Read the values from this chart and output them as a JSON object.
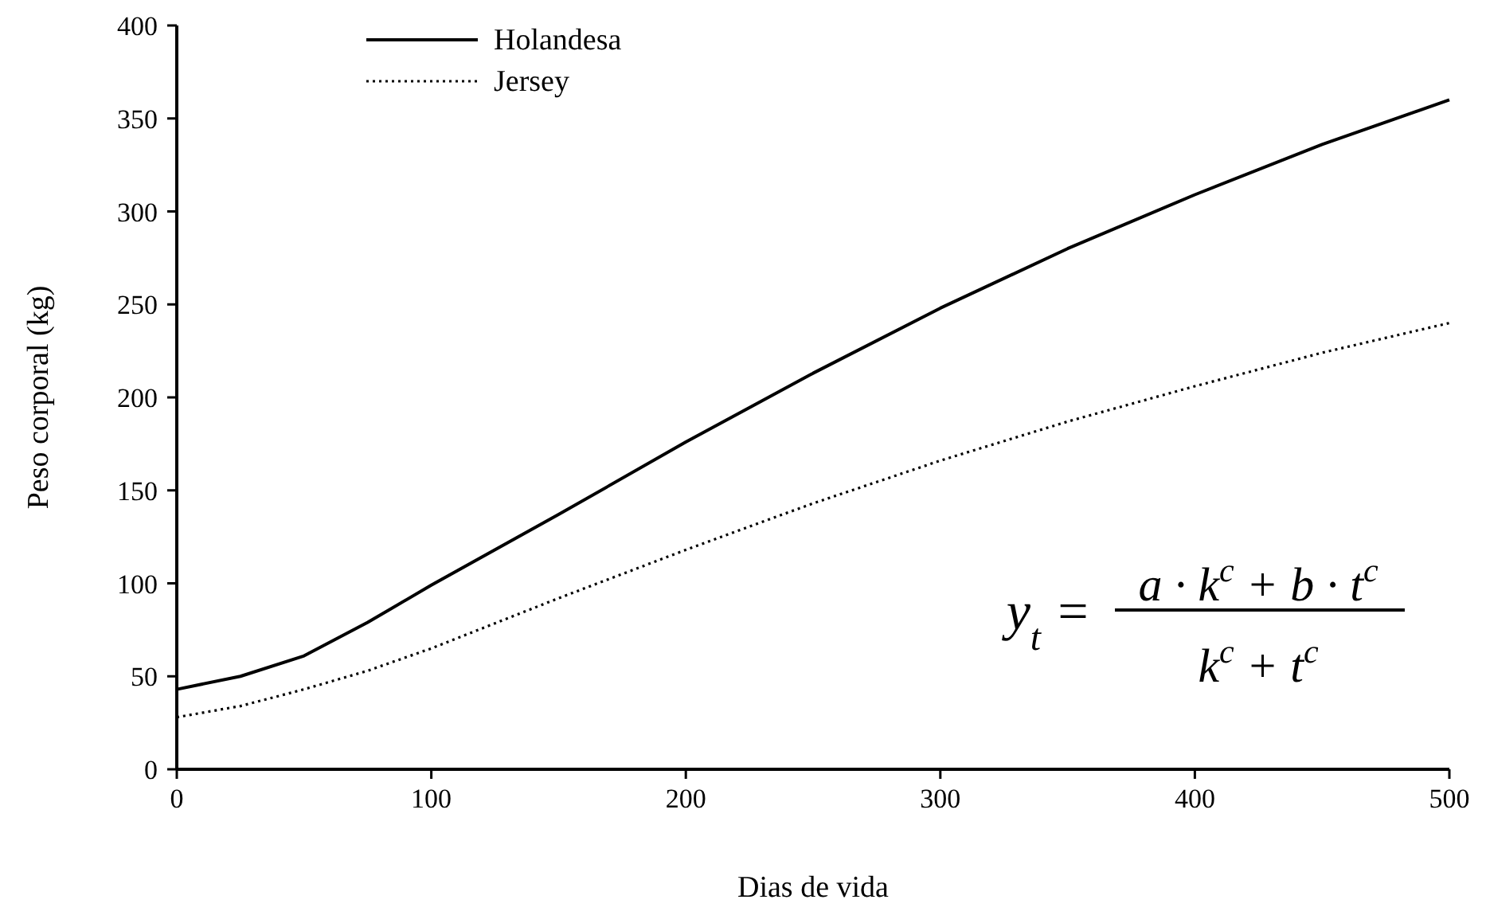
{
  "chart_data": {
    "type": "line",
    "xlabel": "Dias de vida",
    "ylabel": "Peso corporal (kg)",
    "x": [
      0,
      25,
      50,
      75,
      100,
      150,
      200,
      250,
      300,
      350,
      400,
      450,
      500
    ],
    "series": [
      {
        "name": "Holandesa",
        "color": "#000000",
        "line_style": "solid",
        "values": [
          43,
          50,
          61,
          79,
          99,
          137,
          176,
          213,
          248,
          280,
          309,
          336,
          360
        ]
      },
      {
        "name": "Jersey",
        "color": "#000000",
        "line_style": "dotted",
        "values": [
          28,
          34,
          43,
          53,
          65,
          92,
          118,
          143,
          166,
          187,
          206,
          224,
          240
        ]
      }
    ],
    "xlim": [
      0,
      500
    ],
    "xticks": [
      0,
      100,
      200,
      300,
      400,
      500
    ],
    "ylim": [
      0,
      400
    ],
    "yticks": [
      0,
      50,
      100,
      150,
      200,
      250,
      300,
      350,
      400
    ],
    "grid": false,
    "legend": "top",
    "marker": "none",
    "annotations": [
      "y$_{t}$ =",
      "a · k$^{c}$ + b · t$^{c}$",
      "k$^{c}$ + t$^{c}$"
    ]
  }
}
